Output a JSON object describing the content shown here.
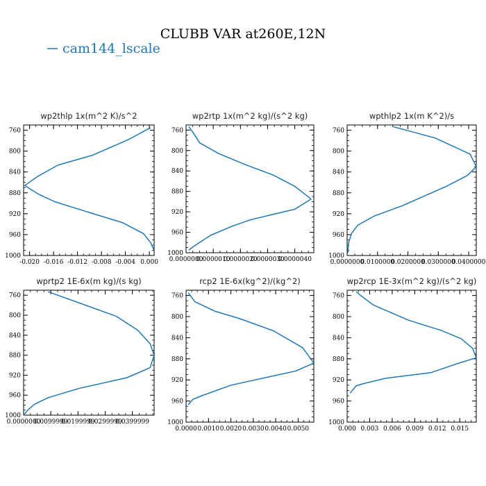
{
  "figure": {
    "title": "CLUBB VAR at260E,12N",
    "legend": [
      {
        "label": "cam144_lscale",
        "color": "#1f77b4"
      }
    ]
  },
  "chart_data": [
    {
      "type": "line",
      "title": "wp2thlp  1x(m^2 K)/s^2",
      "xlim": [
        -0.021,
        0.0008
      ],
      "ylim": [
        1000,
        750
      ],
      "x_ticks": [
        -0.02,
        -0.016,
        -0.012,
        -0.008,
        -0.004,
        0.0
      ],
      "x_tick_labels": [
        "-0.020",
        "-0.016",
        "-0.012",
        "-0.008",
        "-0.004",
        "0.000"
      ],
      "y_ticks": [
        760,
        800,
        840,
        880,
        920,
        960,
        1000
      ],
      "y_tick_labels": [
        "760",
        "800",
        "840",
        "880",
        "920",
        "960",
        "1000"
      ],
      "series": [
        {
          "color": "#1f77b4",
          "x": [
            0.0002,
            -0.0035,
            -0.0095,
            -0.0153,
            -0.0187,
            -0.0208,
            -0.0186,
            -0.0158,
            -0.0105,
            -0.0045,
            -0.001,
            0.0002,
            0.0008
          ],
          "y": [
            755,
            778,
            808,
            827,
            849,
            866,
            882,
            897,
            916,
            937,
            958,
            975,
            990
          ]
        }
      ]
    },
    {
      "type": "line",
      "title": "wp2rtp  1x(m^2 kg)/(s^2 kg)",
      "xlim": [
        0,
        4.7e-06
      ],
      "ylim": [
        1000,
        750
      ],
      "x_ticks": [
        0,
        1e-06,
        2e-06,
        3e-06,
        4e-06
      ],
      "x_tick_labels": [
        "0.0000000",
        "0.0000010",
        "0.0000020",
        "0.0000030",
        "0.0000040"
      ],
      "y_ticks": [
        760,
        800,
        840,
        880,
        920,
        960,
        1000
      ],
      "y_tick_labels": [
        "760",
        "800",
        "840",
        "880",
        "920",
        "960",
        "1000"
      ],
      "series": [
        {
          "color": "#1f77b4",
          "x": [
            1e-07,
            3e-07,
            5e-07,
            1.2e-06,
            2.2e-06,
            3.2e-06,
            4e-06,
            4.6e-06,
            4e-06,
            2.4e-06,
            1.7e-06,
            9e-07,
            3e-07,
            1e-07
          ],
          "y": [
            753,
            768,
            785,
            806,
            828,
            848,
            870,
            895,
            915,
            935,
            948,
            966,
            987,
            995
          ]
        }
      ]
    },
    {
      "type": "line",
      "title": "wpthlp2  1x(m K^2)/s",
      "xlim": [
        0,
        0.0425
      ],
      "ylim": [
        1000,
        750
      ],
      "x_ticks": [
        0,
        0.01,
        0.02,
        0.03,
        0.04
      ],
      "x_tick_labels": [
        "0.0000000",
        "0.0100000",
        "0.0200000",
        "0.0300000",
        "0.0400000"
      ],
      "y_ticks": [
        760,
        800,
        840,
        880,
        920,
        960,
        1000
      ],
      "y_tick_labels": [
        "760",
        "800",
        "840",
        "880",
        "920",
        "960",
        "1000"
      ],
      "series": [
        {
          "color": "#1f77b4",
          "x": [
            0.015,
            0.029,
            0.0405,
            0.0425,
            0.0395,
            0.0325,
            0.018,
            0.0087,
            0.0035,
            0.0015,
            0.0005,
            0.0002
          ],
          "y": [
            753,
            775,
            806,
            830,
            847,
            868,
            905,
            925,
            942,
            957,
            975,
            995
          ]
        }
      ]
    },
    {
      "type": "line",
      "title": "wprtp2  1E-6x(m kg)/(s kg)",
      "xlim": [
        0,
        0.048
      ],
      "ylim": [
        1000,
        750
      ],
      "x_ticks": [
        0,
        0.01,
        0.02,
        0.03,
        0.04
      ],
      "x_tick_labels": [
        "0.0000000",
        "0.0099999",
        "0.0199999",
        "0.0299999",
        "0.0399999"
      ],
      "y_ticks": [
        760,
        800,
        840,
        880,
        920,
        960,
        1000
      ],
      "y_tick_labels": [
        "760",
        "800",
        "840",
        "880",
        "920",
        "960",
        "1000"
      ],
      "series": [
        {
          "color": "#1f77b4",
          "x": [
            0.009,
            0.034,
            0.042,
            0.0465,
            0.048,
            0.0465,
            0.038,
            0.02,
            0.009,
            0.004,
            0.0015,
            0.0003
          ],
          "y": [
            753,
            802,
            830,
            857,
            880,
            905,
            925,
            947,
            965,
            978,
            990,
            998
          ]
        }
      ]
    },
    {
      "type": "line",
      "title": "rcp2  1E-6x(kg^2)/(kg^2)",
      "xlim": [
        0,
        0.0057
      ],
      "ylim": [
        1000,
        750
      ],
      "x_ticks": [
        0,
        0.001,
        0.002,
        0.003,
        0.004,
        0.005
      ],
      "x_tick_labels": [
        "0.0000",
        "0.0010",
        "0.0020",
        "0.0030",
        "0.0040",
        "0.0050"
      ],
      "y_ticks": [
        760,
        800,
        840,
        880,
        920,
        960,
        1000
      ],
      "y_tick_labels": [
        "760",
        "800",
        "840",
        "880",
        "920",
        "960",
        "1000"
      ],
      "series": [
        {
          "color": "#1f77b4",
          "x": [
            0.0001,
            0.0004,
            0.0013,
            0.0024,
            0.0039,
            0.0052,
            0.0057,
            0.0049,
            0.002,
            0.0007,
            0.0003,
            0.0001
          ],
          "y": [
            755,
            772,
            790,
            804,
            827,
            859,
            888,
            903,
            930,
            950,
            957,
            967
          ]
        }
      ]
    },
    {
      "type": "line",
      "title": "wp2rcp  1E-3x(m^2 kg)/(s^2 kg)",
      "xlim": [
        0,
        0.0172
      ],
      "ylim": [
        1000,
        750
      ],
      "x_ticks": [
        0,
        0.003,
        0.006,
        0.009,
        0.012,
        0.015
      ],
      "x_tick_labels": [
        "0.000",
        "0.003",
        "0.006",
        "0.009",
        "0.012",
        "0.015"
      ],
      "y_ticks": [
        760,
        800,
        840,
        880,
        920,
        960,
        1000
      ],
      "y_tick_labels": [
        "760",
        "800",
        "840",
        "880",
        "920",
        "960",
        "1000"
      ],
      "series": [
        {
          "color": "#1f77b4",
          "x": [
            0.0012,
            0.0018,
            0.0035,
            0.0082,
            0.0125,
            0.0152,
            0.0167,
            0.0172,
            0.0147,
            0.0112,
            0.0051,
            0.0022,
            0.0012,
            0.0004
          ],
          "y": [
            753,
            760,
            778,
            807,
            826,
            842,
            860,
            878,
            889,
            906,
            917,
            927,
            931,
            945
          ]
        }
      ]
    }
  ]
}
